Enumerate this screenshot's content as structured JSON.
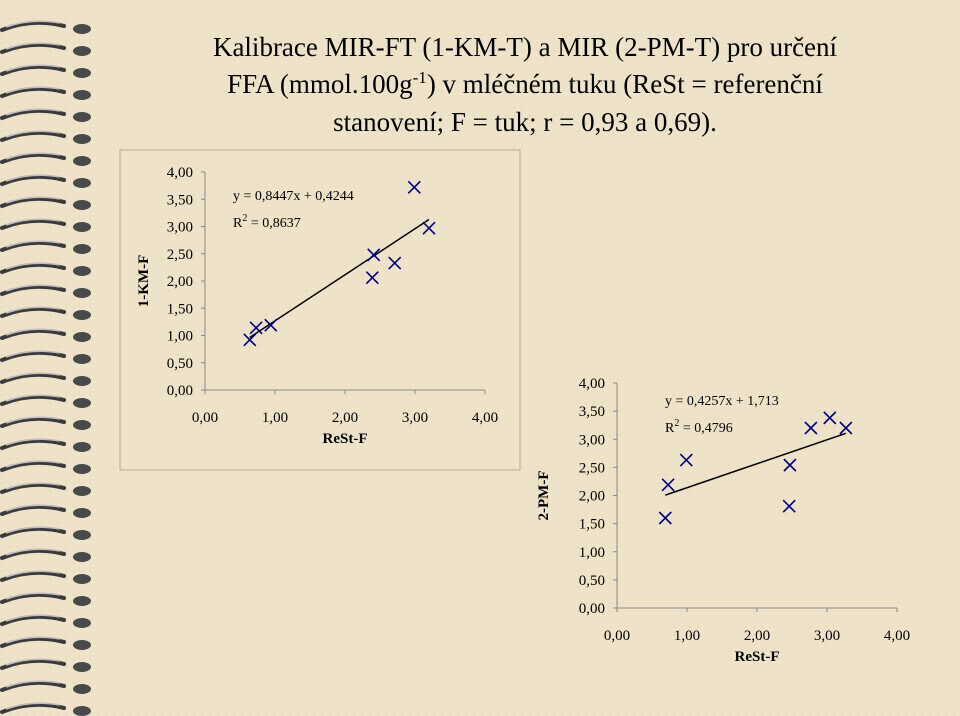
{
  "slide": {
    "title_line1": "Kalibrace MIR-FT (1-KM-T) a MIR (2-PM-T) pro určení",
    "title_line2_a": "FFA (mmol.100g",
    "title_line2_sup": "-1",
    "title_line2_b": ") v mléčném tuku (ReSt = referenční",
    "title_line3": "stanovení; F = tuk; r = 0,93 a 0,69)."
  },
  "chart_data": [
    {
      "type": "scatter",
      "x_label": "ReSt-F",
      "y_label": "1-KM-F",
      "color": "#000080",
      "x": [
        0.64,
        0.73,
        0.94,
        2.41,
        2.39,
        2.71,
        2.99,
        3.2
      ],
      "values": [
        0.92,
        1.14,
        1.19,
        2.48,
        2.06,
        2.33,
        3.72,
        2.97
      ],
      "xlim": [
        0,
        4
      ],
      "ylim": [
        0,
        4
      ],
      "xticks": [
        {
          "value": 0,
          "label": "0,00"
        },
        {
          "value": 1,
          "label": "1,00"
        },
        {
          "value": 2,
          "label": "2,00"
        },
        {
          "value": 3,
          "label": "3,00"
        },
        {
          "value": 4,
          "label": "4,00"
        }
      ],
      "yticks": [
        {
          "value": 0,
          "label": "0,00"
        },
        {
          "value": 0.5,
          "label": "0,50"
        },
        {
          "value": 1,
          "label": "1,00"
        },
        {
          "value": 1.5,
          "label": "1,50"
        },
        {
          "value": 2,
          "label": "2,00"
        },
        {
          "value": 2.5,
          "label": "2,50"
        },
        {
          "value": 3,
          "label": "3,00"
        },
        {
          "value": 3.5,
          "label": "3,50"
        },
        {
          "value": 4,
          "label": "4,00"
        }
      ],
      "trendline": {
        "slope": 0.8447,
        "intercept": 0.4244,
        "equation": "y = 0,8447x + 0,4244",
        "r2_name": "R",
        "r2_sup": "2",
        "r2_value": " = 0,8637"
      }
    },
    {
      "type": "scatter",
      "x_label": "ReSt-F",
      "y_label": "2-PM-F",
      "color": "#000080",
      "x": [
        0.69,
        0.73,
        0.99,
        2.46,
        2.47,
        2.77,
        3.04,
        3.27
      ],
      "values": [
        1.6,
        2.19,
        2.63,
        1.81,
        2.54,
        3.2,
        3.38,
        3.2
      ],
      "xlim": [
        0,
        4
      ],
      "ylim": [
        0,
        4
      ],
      "xticks": [
        {
          "value": 0,
          "label": "0,00"
        },
        {
          "value": 1,
          "label": "1,00"
        },
        {
          "value": 2,
          "label": "2,00"
        },
        {
          "value": 3,
          "label": "3,00"
        },
        {
          "value": 4,
          "label": "4,00"
        }
      ],
      "yticks": [
        {
          "value": 0,
          "label": "0,00"
        },
        {
          "value": 0.5,
          "label": "0,50"
        },
        {
          "value": 1,
          "label": "1,00"
        },
        {
          "value": 1.5,
          "label": "1,50"
        },
        {
          "value": 2,
          "label": "2,00"
        },
        {
          "value": 2.5,
          "label": "2,50"
        },
        {
          "value": 3,
          "label": "3,00"
        },
        {
          "value": 3.5,
          "label": "3,50"
        },
        {
          "value": 4,
          "label": "4,00"
        }
      ],
      "trendline": {
        "slope": 0.4257,
        "intercept": 1.713,
        "equation": "y = 0,4257x + 1,713",
        "r2_name": "R",
        "r2_sup": "2",
        "r2_value": " = 0,4796"
      }
    }
  ]
}
